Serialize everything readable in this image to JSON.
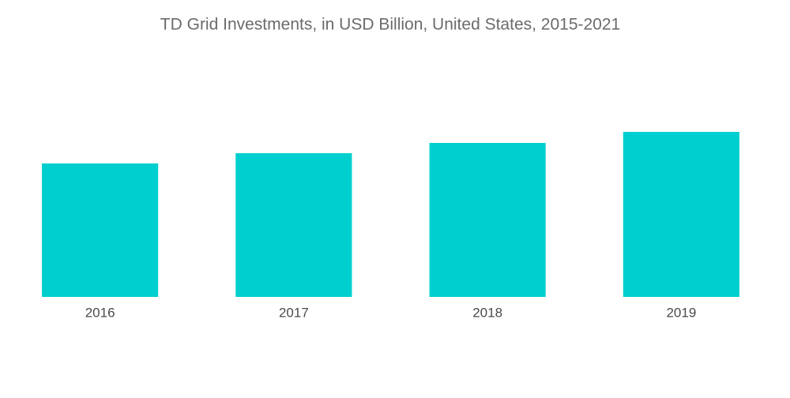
{
  "chart_data": {
    "type": "bar",
    "title": "TD Grid Investments, in USD Billion, United States, 2015-2021",
    "categories": [
      "2016",
      "2017",
      "2018",
      "2019"
    ],
    "values": [
      16.9,
      18.2,
      19.5,
      20.9
    ],
    "color": "#00cfd0",
    "ylim": [
      0,
      25
    ],
    "grid": false
  }
}
